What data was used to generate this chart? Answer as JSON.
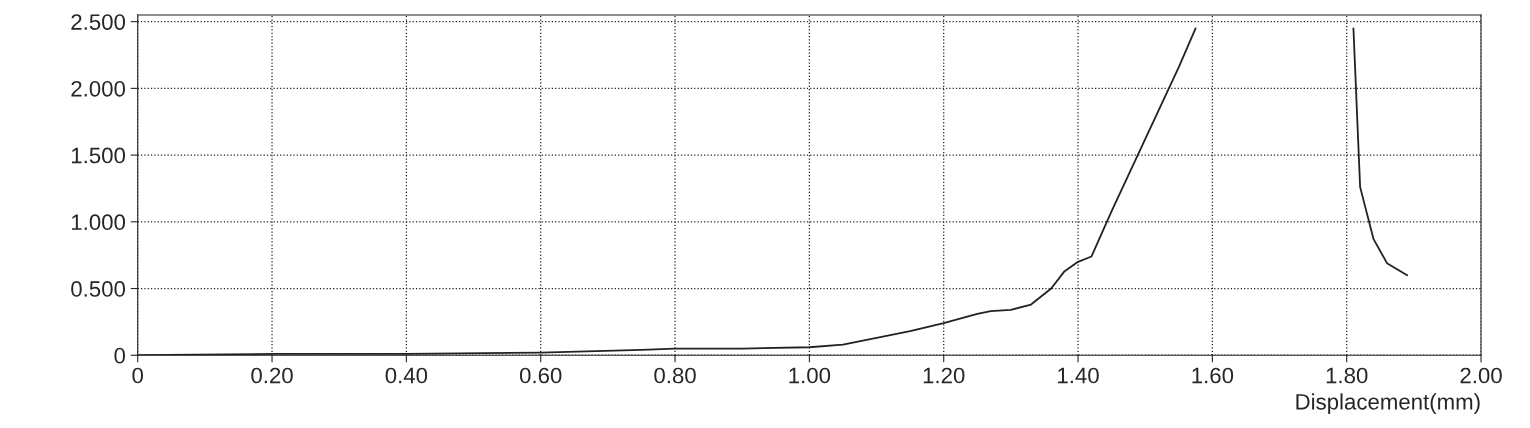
{
  "chart_data": {
    "type": "line",
    "xlabel": "Displacement(mm)",
    "x": [
      0,
      0.2,
      0.4,
      0.6,
      0.75,
      0.8,
      0.9,
      1.0,
      1.05,
      1.1,
      1.15,
      1.2,
      1.25,
      1.27,
      1.3,
      1.33,
      1.36,
      1.38,
      1.4,
      1.42,
      1.45,
      1.5,
      1.55,
      1.575,
      1.7,
      1.81,
      1.82,
      1.84,
      1.86,
      1.89
    ],
    "series": [
      {
        "color": "#222222",
        "values": [
          0,
          0.01,
          0.01,
          0.02,
          0.04,
          0.05,
          0.05,
          0.06,
          0.08,
          0.13,
          0.18,
          0.24,
          0.31,
          0.33,
          0.34,
          0.38,
          0.5,
          0.63,
          0.7,
          0.74,
          1.08,
          1.62,
          2.16,
          2.45,
          null,
          2.45,
          1.26,
          0.87,
          0.69,
          0.6
        ]
      }
    ],
    "xlim": [
      0,
      2.0
    ],
    "ylim": [
      0,
      2.55
    ],
    "xticks": [
      0,
      {
        "value": 0.2,
        "label": "0.20"
      },
      {
        "value": 0.4,
        "label": "0.40"
      },
      {
        "value": 0.6,
        "label": "0.60"
      },
      {
        "value": 0.8,
        "label": "0.80"
      },
      {
        "value": 1.0,
        "label": "1.00"
      },
      {
        "value": 1.2,
        "label": "1.20"
      },
      {
        "value": 1.4,
        "label": "1.40"
      },
      {
        "value": 1.6,
        "label": "1.60"
      },
      {
        "value": 1.8,
        "label": "1.80"
      },
      {
        "value": 2.0,
        "label": "2.00"
      }
    ],
    "yticks": [
      0,
      {
        "value": 0.5,
        "label": "0.500"
      },
      {
        "value": 1.0,
        "label": "1.000"
      },
      {
        "value": 1.5,
        "label": "1.500"
      },
      {
        "value": 2.0,
        "label": "2.000"
      },
      {
        "value": 2.5,
        "label": "2.500"
      }
    ],
    "grid": true,
    "marker": "none",
    "line_style": "solid"
  }
}
